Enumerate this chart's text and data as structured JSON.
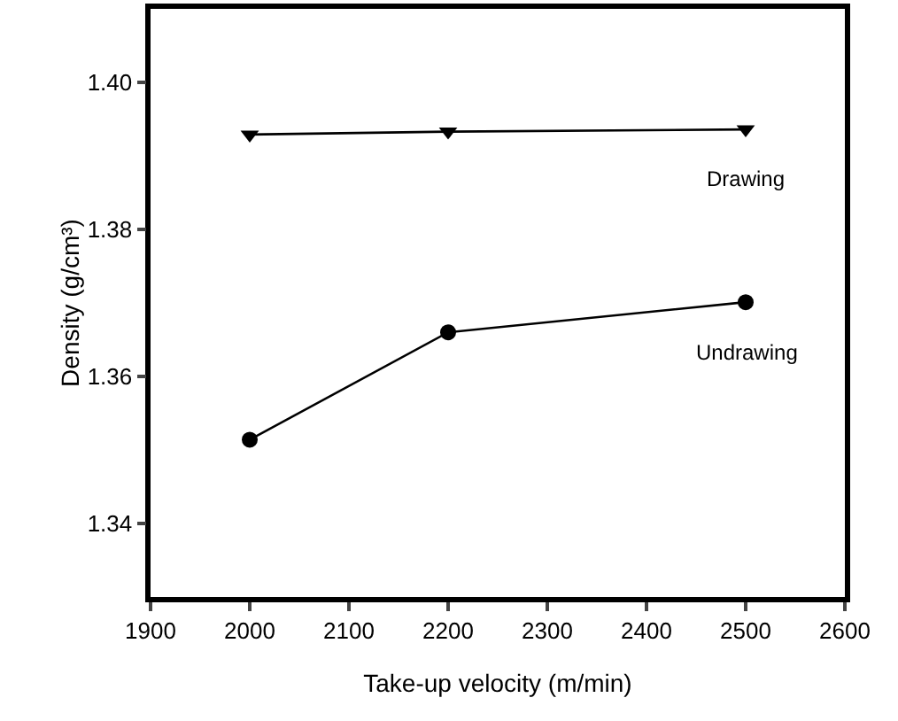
{
  "chart_data": {
    "type": "line",
    "xlabel": "Take-up velocity (m/min)",
    "ylabel": "Density (g/cm³)",
    "x": [
      2000,
      2200,
      2500
    ],
    "series": [
      {
        "name": "Drawing",
        "color": "#000000",
        "marker": "triangle",
        "values": [
          1.3929,
          1.3933,
          1.3936
        ]
      },
      {
        "name": "Undrawing",
        "color": "#000000",
        "marker": "circle",
        "values": [
          1.3514,
          1.366,
          1.3701
        ]
      }
    ],
    "xlim": [
      1900,
      2600
    ],
    "xticks": [
      1900,
      2000,
      2100,
      2200,
      2300,
      2400,
      2500,
      2600
    ],
    "ylim": [
      1.33,
      1.41
    ],
    "yticks": [
      {
        "value": 1.34,
        "label": "1.34"
      },
      {
        "value": 1.36,
        "label": "1.36"
      },
      {
        "value": 1.38,
        "label": "1.38"
      },
      {
        "value": 1.4,
        "label": "1.40"
      }
    ],
    "grid": false,
    "legend": false,
    "line_style": "solid"
  }
}
